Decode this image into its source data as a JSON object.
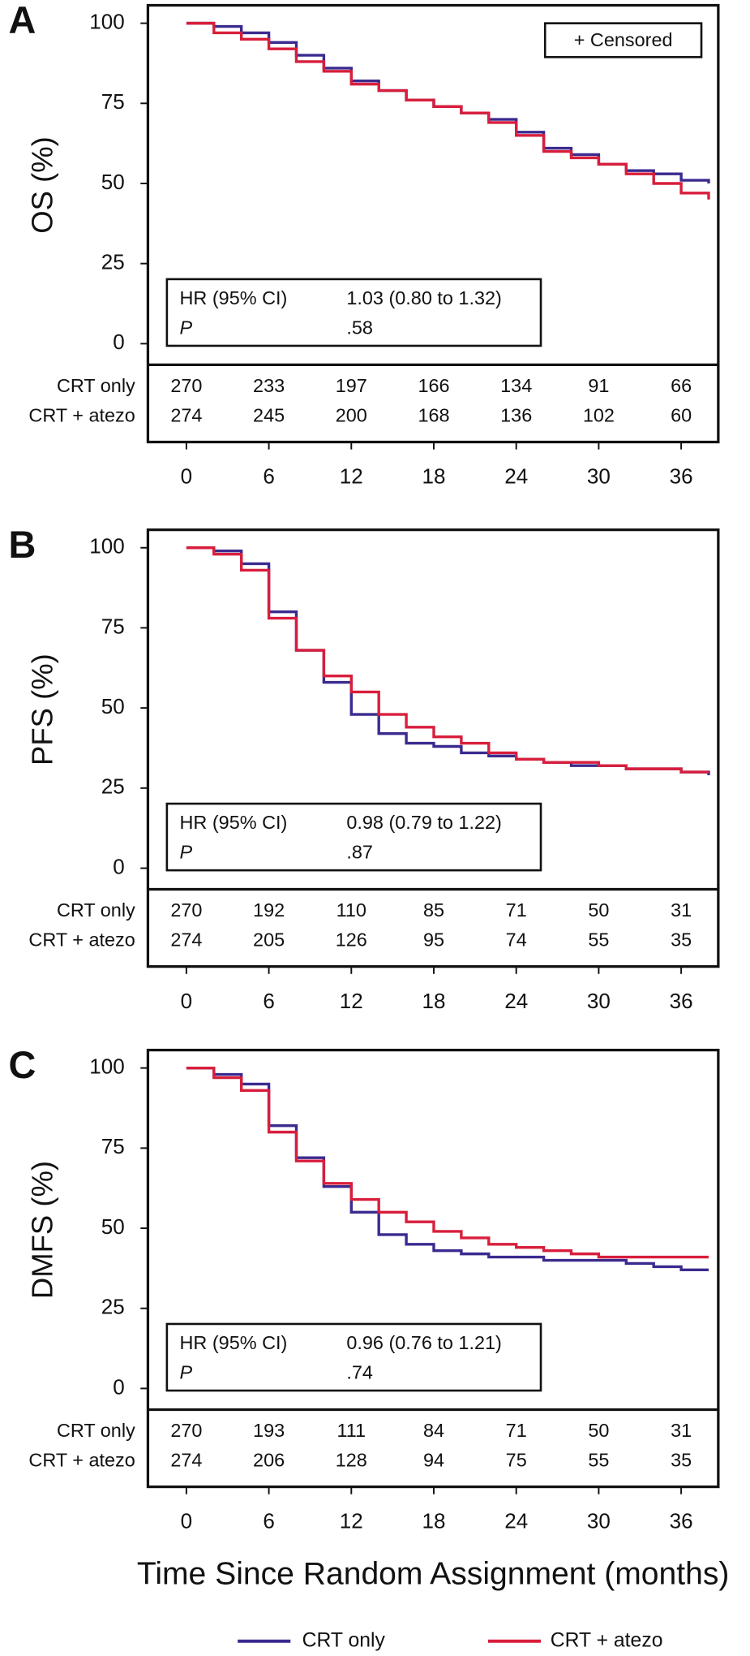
{
  "chart_data": [
    {
      "type": "step",
      "panel": "A",
      "ylabel": "OS (%)",
      "censored_label": "+ Censored",
      "x": [
        0,
        2,
        4,
        6,
        8,
        10,
        12,
        14,
        16,
        18,
        20,
        22,
        24,
        26,
        28,
        30,
        32,
        34,
        36,
        38
      ],
      "xlim": [
        -2.8,
        38.7
      ],
      "ylim": [
        -6.6,
        105.6
      ],
      "xticks": [
        0,
        6,
        12,
        18,
        24,
        30,
        36
      ],
      "yticks": [
        0,
        25,
        50,
        75,
        100
      ],
      "series": [
        {
          "name": "CRT only",
          "color": "#3b2a8f",
          "values": [
            100,
            99,
            97,
            94,
            90,
            86,
            82,
            79,
            76,
            74,
            72,
            70,
            66,
            61,
            59,
            56,
            54,
            53,
            51,
            50
          ],
          "at_risk": [
            270,
            233,
            197,
            166,
            134,
            91,
            66
          ]
        },
        {
          "name": "CRT + atezo",
          "color": "#d81e3c",
          "values": [
            100,
            97,
            95,
            92,
            88,
            85,
            81,
            79,
            76,
            74,
            72,
            69,
            65,
            60,
            58,
            56,
            53,
            50,
            47,
            45
          ],
          "at_risk": [
            274,
            245,
            200,
            168,
            136,
            102,
            60
          ]
        }
      ],
      "stats": {
        "hr_label": "HR (95% CI)",
        "hr_value": "1.03 (0.80 to 1.32)",
        "p_label": "P",
        "p_value": ".58"
      }
    },
    {
      "type": "step",
      "panel": "B",
      "ylabel": "PFS (%)",
      "x": [
        0,
        2,
        4,
        6,
        8,
        10,
        12,
        14,
        16,
        18,
        20,
        22,
        24,
        26,
        28,
        30,
        32,
        34,
        36,
        38
      ],
      "xlim": [
        -2.8,
        38.7
      ],
      "ylim": [
        -6.6,
        105.6
      ],
      "xticks": [
        0,
        6,
        12,
        18,
        24,
        30,
        36
      ],
      "yticks": [
        0,
        25,
        50,
        75,
        100
      ],
      "series": [
        {
          "name": "CRT only",
          "color": "#3b2a8f",
          "values": [
            100,
            99,
            95,
            80,
            68,
            58,
            48,
            42,
            39,
            38,
            36,
            35,
            34,
            33,
            32,
            32,
            31,
            31,
            30,
            29
          ],
          "at_risk": [
            270,
            192,
            110,
            85,
            71,
            50,
            31
          ]
        },
        {
          "name": "CRT + atezo",
          "color": "#d81e3c",
          "values": [
            100,
            98,
            93,
            78,
            68,
            60,
            55,
            48,
            44,
            41,
            39,
            36,
            34,
            33,
            33,
            32,
            31,
            31,
            30,
            30
          ],
          "at_risk": [
            274,
            205,
            126,
            95,
            74,
            55,
            35
          ]
        }
      ],
      "stats": {
        "hr_label": "HR (95% CI)",
        "hr_value": "0.98 (0.79 to 1.22)",
        "p_label": "P",
        "p_value": ".87"
      }
    },
    {
      "type": "step",
      "panel": "C",
      "ylabel": "DMFS (%)",
      "x": [
        0,
        2,
        4,
        6,
        8,
        10,
        12,
        14,
        16,
        18,
        20,
        22,
        24,
        26,
        28,
        30,
        32,
        34,
        36,
        38
      ],
      "xlim": [
        -2.8,
        38.7
      ],
      "ylim": [
        -6.6,
        105.6
      ],
      "xticks": [
        0,
        6,
        12,
        18,
        24,
        30,
        36
      ],
      "yticks": [
        0,
        25,
        50,
        75,
        100
      ],
      "series": [
        {
          "name": "CRT only",
          "color": "#3b2a8f",
          "values": [
            100,
            98,
            95,
            82,
            72,
            63,
            55,
            48,
            45,
            43,
            42,
            41,
            41,
            40,
            40,
            40,
            39,
            38,
            37,
            37
          ],
          "at_risk": [
            270,
            193,
            111,
            84,
            71,
            50,
            31
          ]
        },
        {
          "name": "CRT + atezo",
          "color": "#d81e3c",
          "values": [
            100,
            97,
            93,
            80,
            71,
            64,
            59,
            55,
            52,
            49,
            47,
            45,
            44,
            43,
            42,
            41,
            41,
            41,
            41,
            41
          ],
          "at_risk": [
            274,
            206,
            128,
            94,
            75,
            55,
            35
          ]
        }
      ],
      "stats": {
        "hr_label": "HR (95% CI)",
        "hr_value": "0.96 (0.76 to 1.21)",
        "p_label": "P",
        "p_value": ".74"
      }
    }
  ],
  "x_label": "Time Since Random Assignment (months)"
}
